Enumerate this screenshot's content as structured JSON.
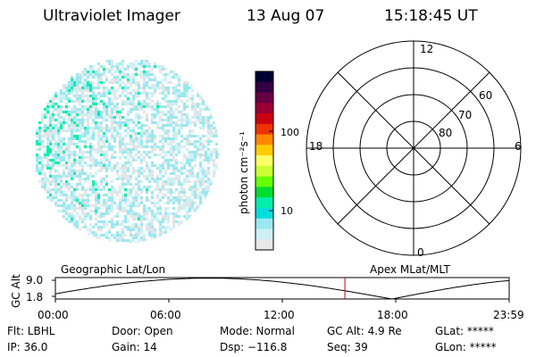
{
  "header": {
    "title": "Ultraviolet Imager",
    "date": "13 Aug 07",
    "time": "15:18:45 UT"
  },
  "colorbar": {
    "unit_label": "photon cm⁻²s⁻¹",
    "ticks": [
      "100",
      "10"
    ],
    "colors": [
      "#000033",
      "#330044",
      "#660044",
      "#990033",
      "#cc0011",
      "#ee3300",
      "#ff8800",
      "#ffcc00",
      "#ffff66",
      "#ccff33",
      "#66ff00",
      "#00dd33",
      "#00eeaa",
      "#00dddd",
      "#99e8f0",
      "#ccf0f5",
      "#e8e8e8"
    ]
  },
  "polar": {
    "lat_labels": [
      "60",
      "70",
      "80"
    ],
    "mlt_labels": {
      "top": "12",
      "bottom": "0",
      "left": "18",
      "right": "6"
    }
  },
  "image_panel": {
    "colors": [
      "#00eeaa",
      "#99e8f0",
      "#ccf0f5",
      "#e4e4e4"
    ]
  },
  "altitude_plot": {
    "left_title": "Geographic Lat/Lon",
    "right_title": "Apex MLat/MLT",
    "axis_label": "GC Alt",
    "y_ticks": [
      "9.0",
      "1.8"
    ],
    "x_ticks": [
      "00:00",
      "06:00",
      "12:00",
      "18:00",
      "23:59"
    ],
    "current_time_hours": 15.31,
    "cursor_color": "#cc0000"
  },
  "info": {
    "flt": "Flt: LBHL",
    "door": "Door: Open",
    "mode": "Mode: Normal",
    "gc_alt": "GC Alt: 4.9 Re",
    "glat": "GLat: *****",
    "ip": "IP: 36.0",
    "gain": "Gain: 14",
    "dsp": "Dsp: −116.8",
    "seq": "Seq: 39",
    "glon": "GLon: *****"
  }
}
